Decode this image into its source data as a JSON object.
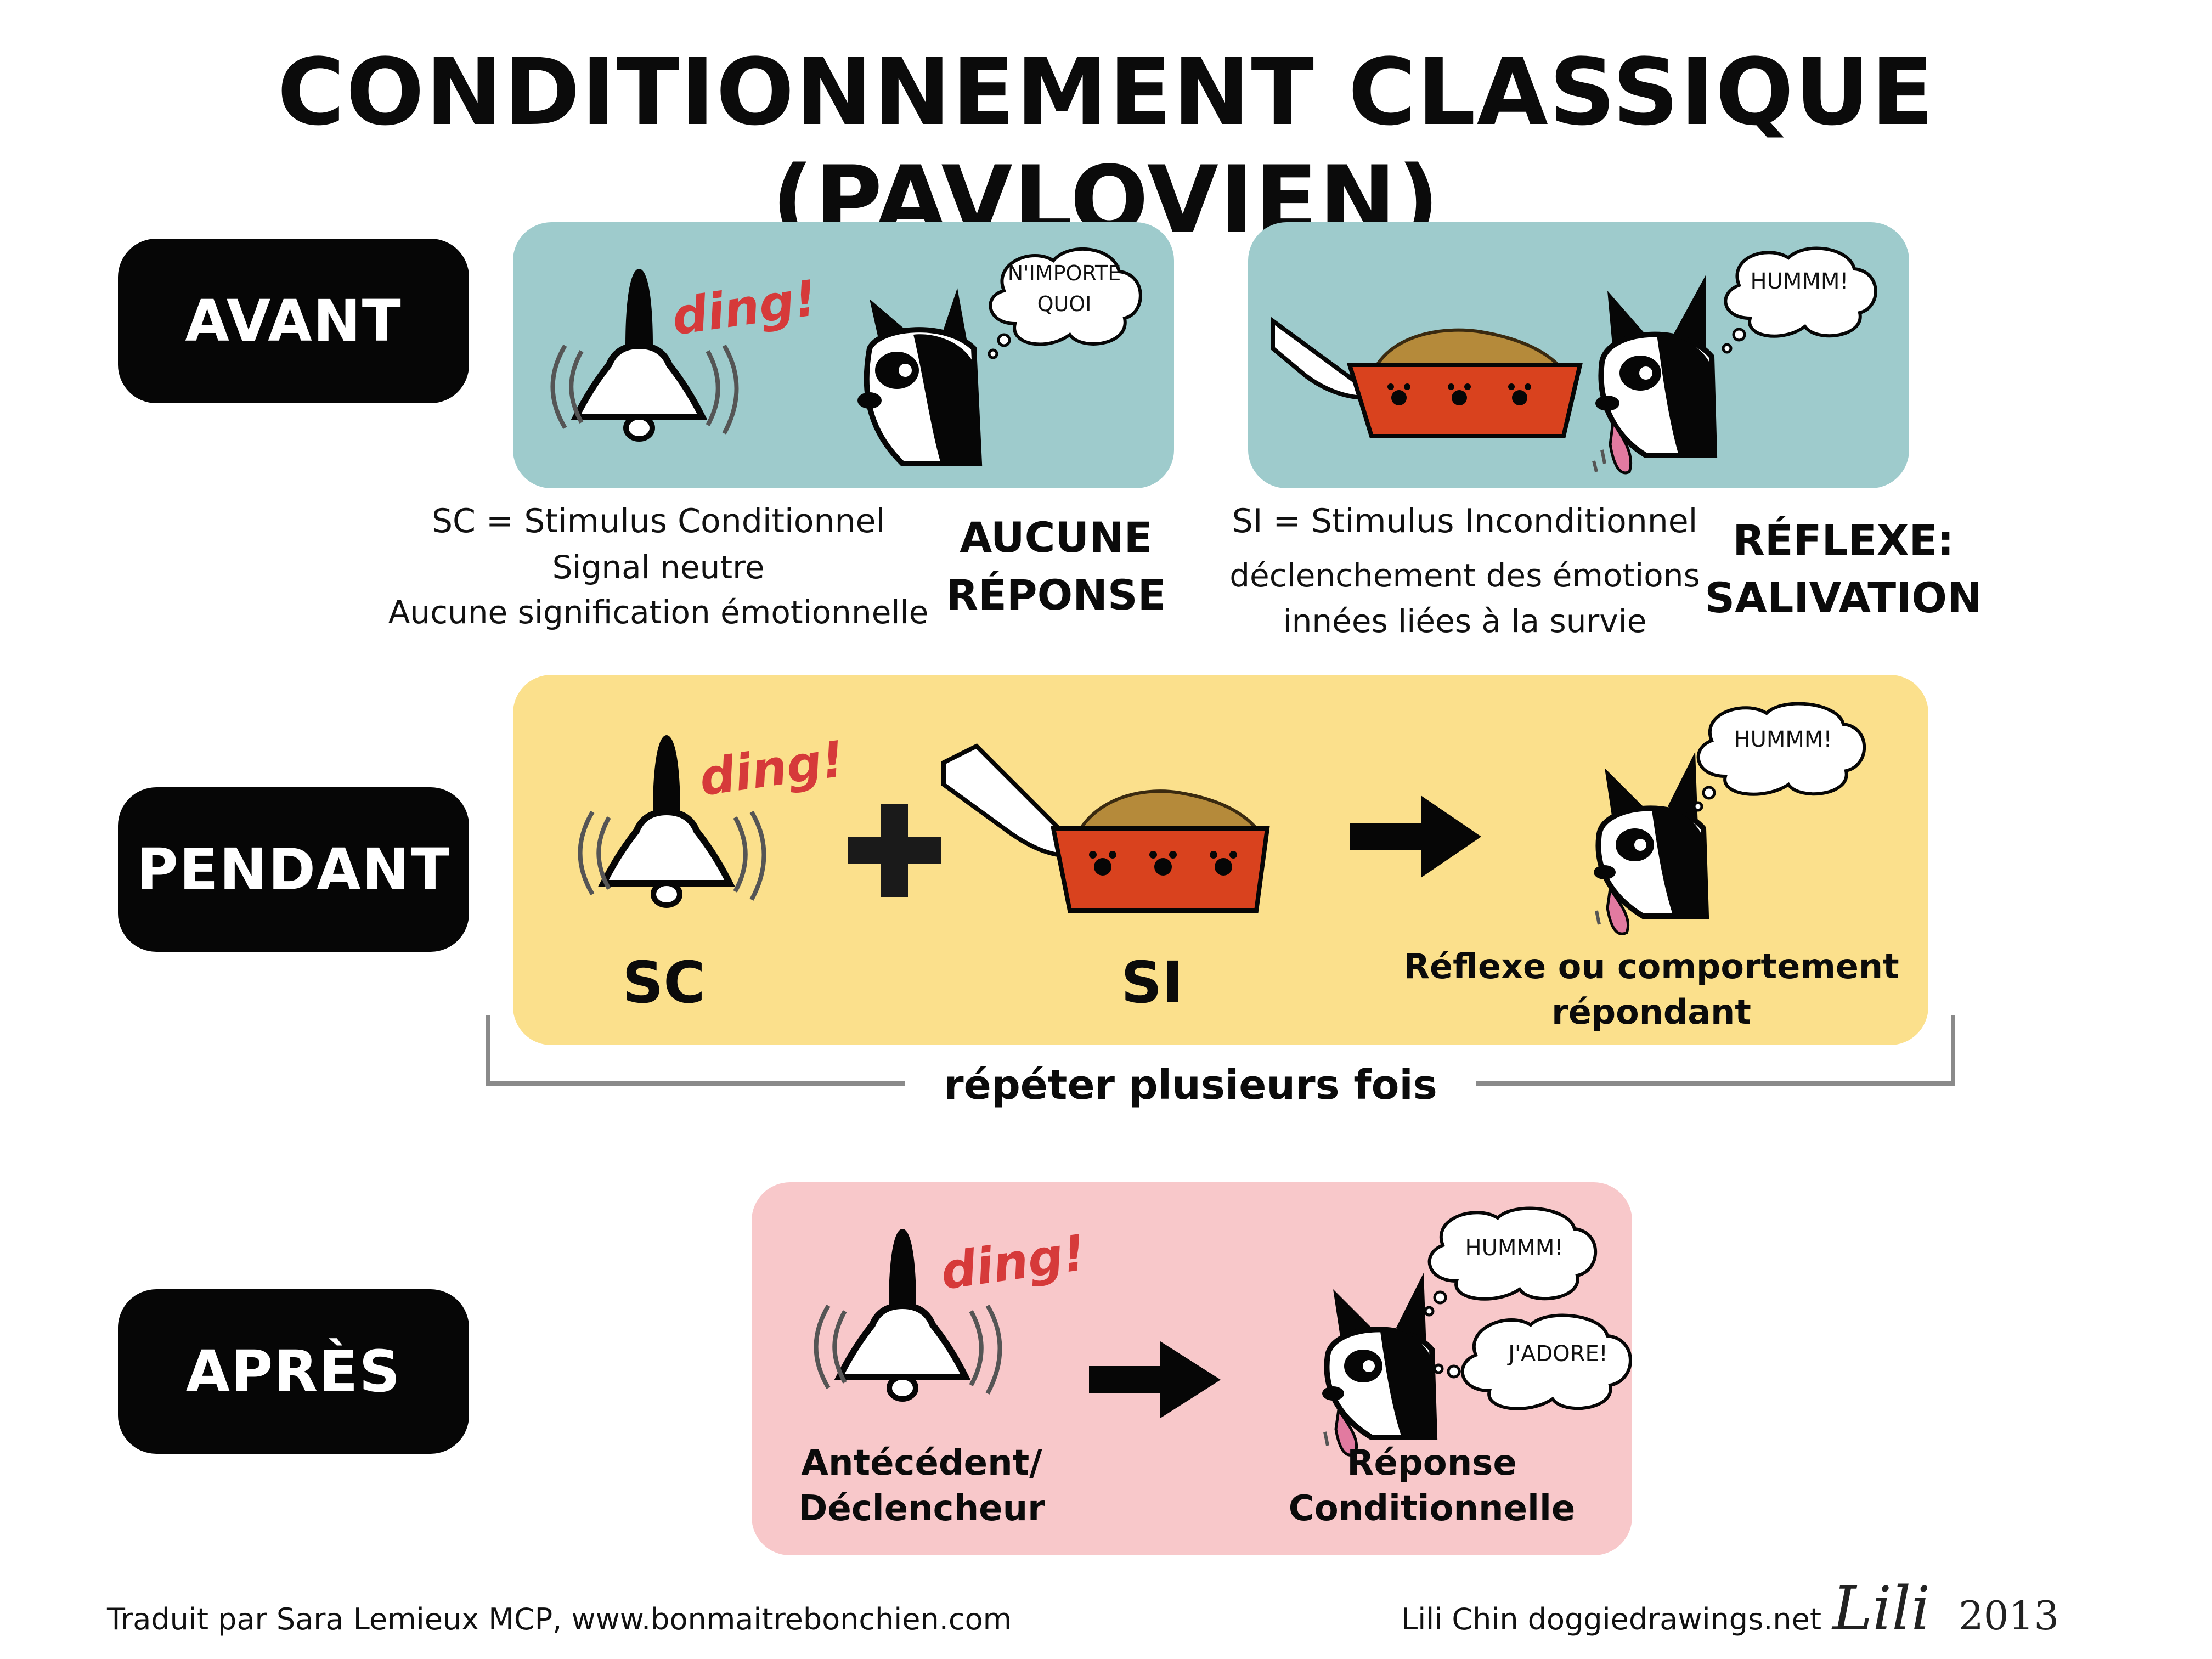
{
  "title": "CONDITIONNEMENT CLASSIQUE (PAVLOVIEN)",
  "stages": {
    "before": "AVANT",
    "during": "PENDANT",
    "after": "APRÈS"
  },
  "before": {
    "bell_sound": "ding!",
    "thought_neutral": "N'IMPORTE QUOI",
    "thought_food": "HUMMM!",
    "cs_line1": "SC = Stimulus Conditionnel",
    "cs_line2": "Signal neutre",
    "cs_line3": "Aucune signification émotionnelle",
    "no_response_1": "AUCUNE",
    "no_response_2": "RÉPONSE",
    "us_line1": "SI = Stimulus Inconditionnel",
    "us_line2": "déclenchement des émotions",
    "us_line3": "innées liées à la survie",
    "reflex_1": "RÉFLEXE:",
    "reflex_2": "SALIVATION"
  },
  "during": {
    "bell_sound": "ding!",
    "plus": "+",
    "thought": "HUMMM!",
    "cs_label": "SC",
    "us_label": "SI",
    "response_1": "Réflexe ou comportement",
    "response_2": "répondant",
    "repeat": "répéter plusieurs fois"
  },
  "after": {
    "bell_sound": "ding!",
    "thought_1": "HUMMM!",
    "thought_2": "J'ADORE!",
    "trigger_1": "Antécédent/",
    "trigger_2": "Déclencheur",
    "response_1": "Réponse",
    "response_2": "Conditionnelle"
  },
  "footer": {
    "translator": "Traduit par Sara Lemieux MCP, www.bonmaitrebonchien.com",
    "author": "Lili Chin doggiedrawings.net",
    "signature": "Lili",
    "year": "2013"
  },
  "colors": {
    "teal": "#9ecbcc",
    "yellow": "#fbe08c",
    "pink": "#f8c8ca",
    "ding": "#d63a3a",
    "bowl": "#d9421e"
  }
}
